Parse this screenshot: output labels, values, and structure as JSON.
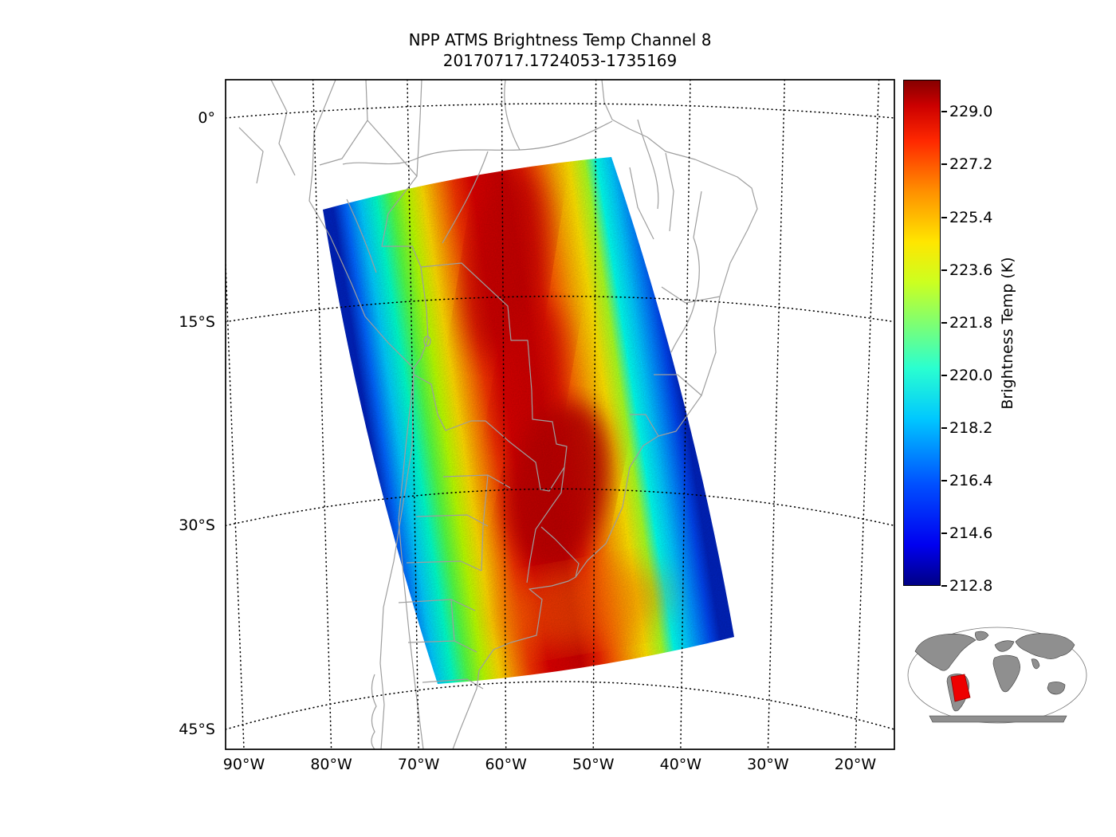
{
  "chart_data": {
    "type": "heatmap",
    "title": "NPP ATMS Brightness Temp Channel 8",
    "subtitle": "20170717.1724053-1735169",
    "x_tick_labels": [
      "90°W",
      "80°W",
      "70°W",
      "60°W",
      "50°W",
      "40°W",
      "30°W",
      "20°W"
    ],
    "y_tick_labels": [
      "0°",
      "15°S",
      "30°S",
      "45°S"
    ],
    "colorbar": {
      "label": "Brightness Temp (K)",
      "tick_values": [
        229.0,
        227.2,
        225.4,
        223.6,
        221.8,
        220.0,
        218.2,
        216.4,
        214.6,
        212.8
      ],
      "value_min": 212.8,
      "value_max": 230.1,
      "colormap": "jet"
    },
    "swath": {
      "region": "South America",
      "corner_coords_lon_lat": [
        [
          -79.8,
          -6.7
        ],
        [
          -49.7,
          -2.9
        ],
        [
          -36.8,
          -38.2
        ],
        [
          -67.8,
          -41.6
        ]
      ],
      "cross_track_position": [
        0,
        0.06,
        0.12,
        0.2,
        0.28,
        0.36,
        0.45,
        0.55,
        0.65,
        0.72,
        0.78,
        0.84,
        0.9,
        0.95,
        1
      ],
      "cross_track_temp_k": [
        213,
        216,
        219.5,
        222.5,
        225,
        227.5,
        229,
        229.3,
        228,
        226,
        224,
        221.5,
        218,
        215.5,
        213.5
      ],
      "max_temp_k": 229.3,
      "min_temp_k": 212.8
    }
  }
}
